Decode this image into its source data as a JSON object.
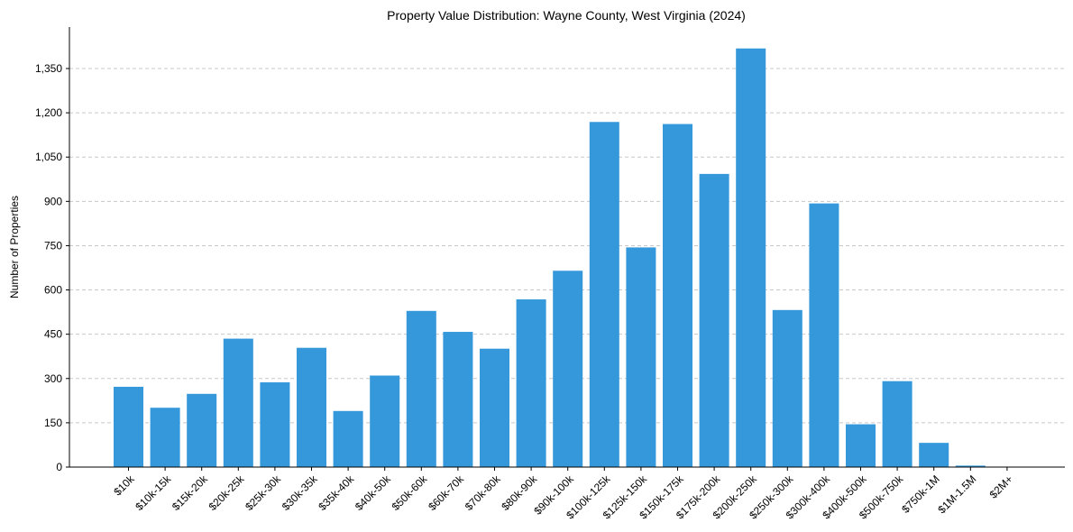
{
  "chart_data": {
    "type": "bar",
    "title": "Property Value Distribution: Wayne County, West Virginia (2024)",
    "xlabel": "",
    "ylabel": "Number of Properties",
    "ylim": [
      0,
      1420
    ],
    "yticks": [
      0,
      150,
      300,
      450,
      600,
      750,
      900,
      1050,
      1200,
      1350
    ],
    "ytick_labels": [
      "0",
      "150",
      "300",
      "450",
      "600",
      "750",
      "900",
      "1,050",
      "1,200",
      "1,350"
    ],
    "grid": true,
    "bar_color": "#3498db",
    "categories": [
      "$10k",
      "$10k-15k",
      "$15k-20k",
      "$20k-25k",
      "$25k-30k",
      "$30k-35k",
      "$35k-40k",
      "$40k-50k",
      "$50k-60k",
      "$60k-70k",
      "$70k-80k",
      "$80k-90k",
      "$90k-100k",
      "$100k-125k",
      "$125k-150k",
      "$150k-175k",
      "$175k-200k",
      "$200k-250k",
      "$250k-300k",
      "$300k-400k",
      "$400k-500k",
      "$500k-750k",
      "$750k-1M",
      "$1M-1.5M",
      "$2M+"
    ],
    "values": [
      272,
      201,
      248,
      435,
      287,
      404,
      190,
      310,
      529,
      458,
      401,
      568,
      665,
      1169,
      744,
      1162,
      993,
      1418,
      532,
      893,
      145,
      291,
      82,
      5,
      0
    ]
  }
}
